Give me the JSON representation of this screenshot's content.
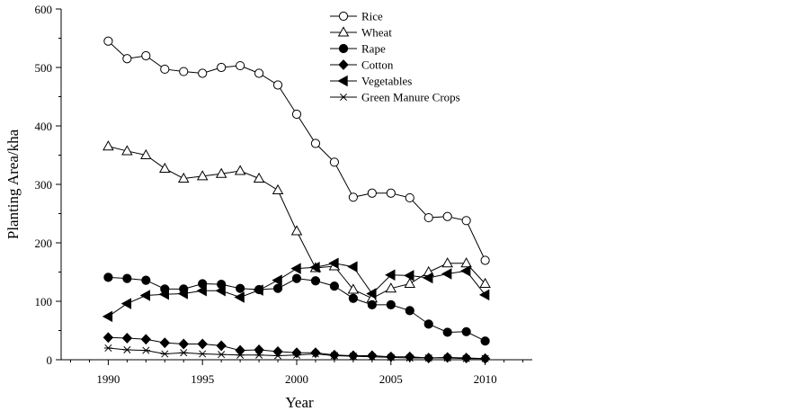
{
  "chart_data": {
    "type": "line",
    "title": "",
    "xlabel": "Year",
    "ylabel": "Planting Area/kha",
    "xlim": [
      1987.5,
      2012.5
    ],
    "ylim": [
      0,
      600
    ],
    "xticks": [
      1990,
      1995,
      2000,
      2005,
      2010
    ],
    "yticks": [
      0,
      100,
      200,
      300,
      400,
      500,
      600
    ],
    "xtick_labels": [
      "1990",
      "1995",
      "2000",
      "2005",
      "2010"
    ],
    "ytick_labels": [
      "0",
      "100",
      "200",
      "300",
      "400",
      "500",
      "600"
    ],
    "grid": false,
    "legend_position": "top-center",
    "x": [
      1990,
      1991,
      1992,
      1993,
      1994,
      1995,
      1996,
      1997,
      1998,
      1999,
      2000,
      2001,
      2002,
      2003,
      2004,
      2005,
      2006,
      2007,
      2008,
      2009,
      2010
    ],
    "series": [
      {
        "name": "Rice",
        "marker": "circle-open",
        "values": [
          545,
          515,
          520,
          497,
          493,
          490,
          500,
          503,
          490,
          470,
          420,
          370,
          338,
          278,
          285,
          285,
          277,
          243,
          245,
          238,
          170
        ]
      },
      {
        "name": "Wheat",
        "marker": "triangle-up-open",
        "values": [
          365,
          357,
          350,
          327,
          310,
          314,
          318,
          323,
          310,
          290,
          220,
          157,
          160,
          120,
          105,
          122,
          130,
          150,
          165,
          165,
          130
        ]
      },
      {
        "name": "Rape",
        "marker": "circle-filled",
        "values": [
          141,
          139,
          136,
          121,
          121,
          130,
          129,
          122,
          120,
          122,
          139,
          135,
          126,
          105,
          94,
          94,
          84,
          61,
          47,
          48,
          32
        ]
      },
      {
        "name": "Cotton",
        "marker": "diamond-filled",
        "values": [
          38,
          37,
          35,
          29,
          27,
          27,
          24,
          16,
          17,
          14,
          12,
          12,
          8,
          7,
          7,
          5,
          5,
          3,
          4,
          3,
          2
        ]
      },
      {
        "name": "Vegetables",
        "marker": "triangle-left-filled",
        "values": [
          74,
          96,
          110,
          112,
          113,
          118,
          118,
          107,
          119,
          136,
          156,
          158,
          165,
          159,
          113,
          145,
          144,
          140,
          147,
          152,
          111
        ]
      },
      {
        "name": "Green Manure Crops",
        "marker": "asterisk",
        "values": [
          20,
          17,
          16,
          10,
          12,
          10,
          9,
          8,
          8,
          7,
          8,
          10,
          7,
          6,
          5,
          4,
          3,
          3,
          3,
          2,
          2
        ]
      }
    ]
  }
}
